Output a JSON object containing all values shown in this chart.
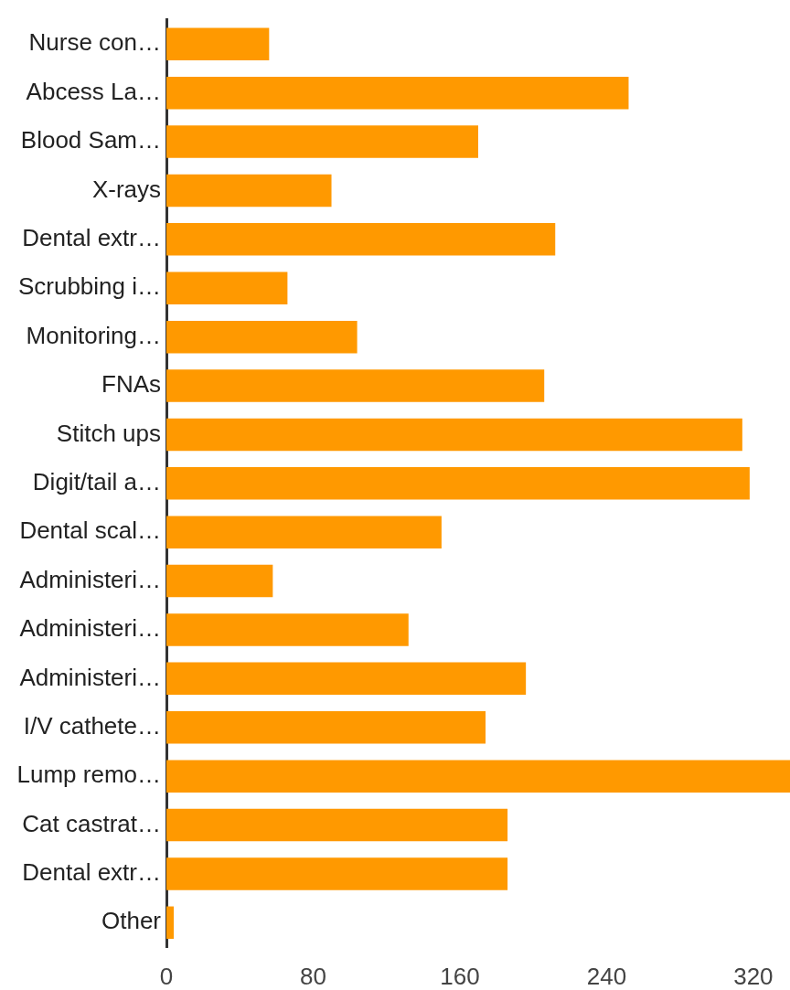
{
  "chart_data": {
    "type": "bar",
    "orientation": "horizontal",
    "categories": [
      "Nurse con…",
      "Abcess La…",
      "Blood Sam…",
      "X-rays",
      "Dental extr…",
      "Scrubbing i…",
      "Monitoring…",
      "FNAs",
      "Stitch ups",
      "Digit/tail a…",
      "Dental scal…",
      "Administeri…",
      "Administeri…",
      "Administeri…",
      "I/V cathete…",
      "Lump remo…",
      "Cat castrat…",
      "Dental extr…",
      "Other"
    ],
    "values": [
      56,
      252,
      170,
      90,
      212,
      66,
      104,
      206,
      314,
      318,
      150,
      58,
      132,
      196,
      174,
      340,
      186,
      186,
      4
    ],
    "color": "#ff9900",
    "xlim": [
      0,
      340
    ],
    "xticks": [
      0,
      80,
      160,
      240,
      320
    ]
  }
}
